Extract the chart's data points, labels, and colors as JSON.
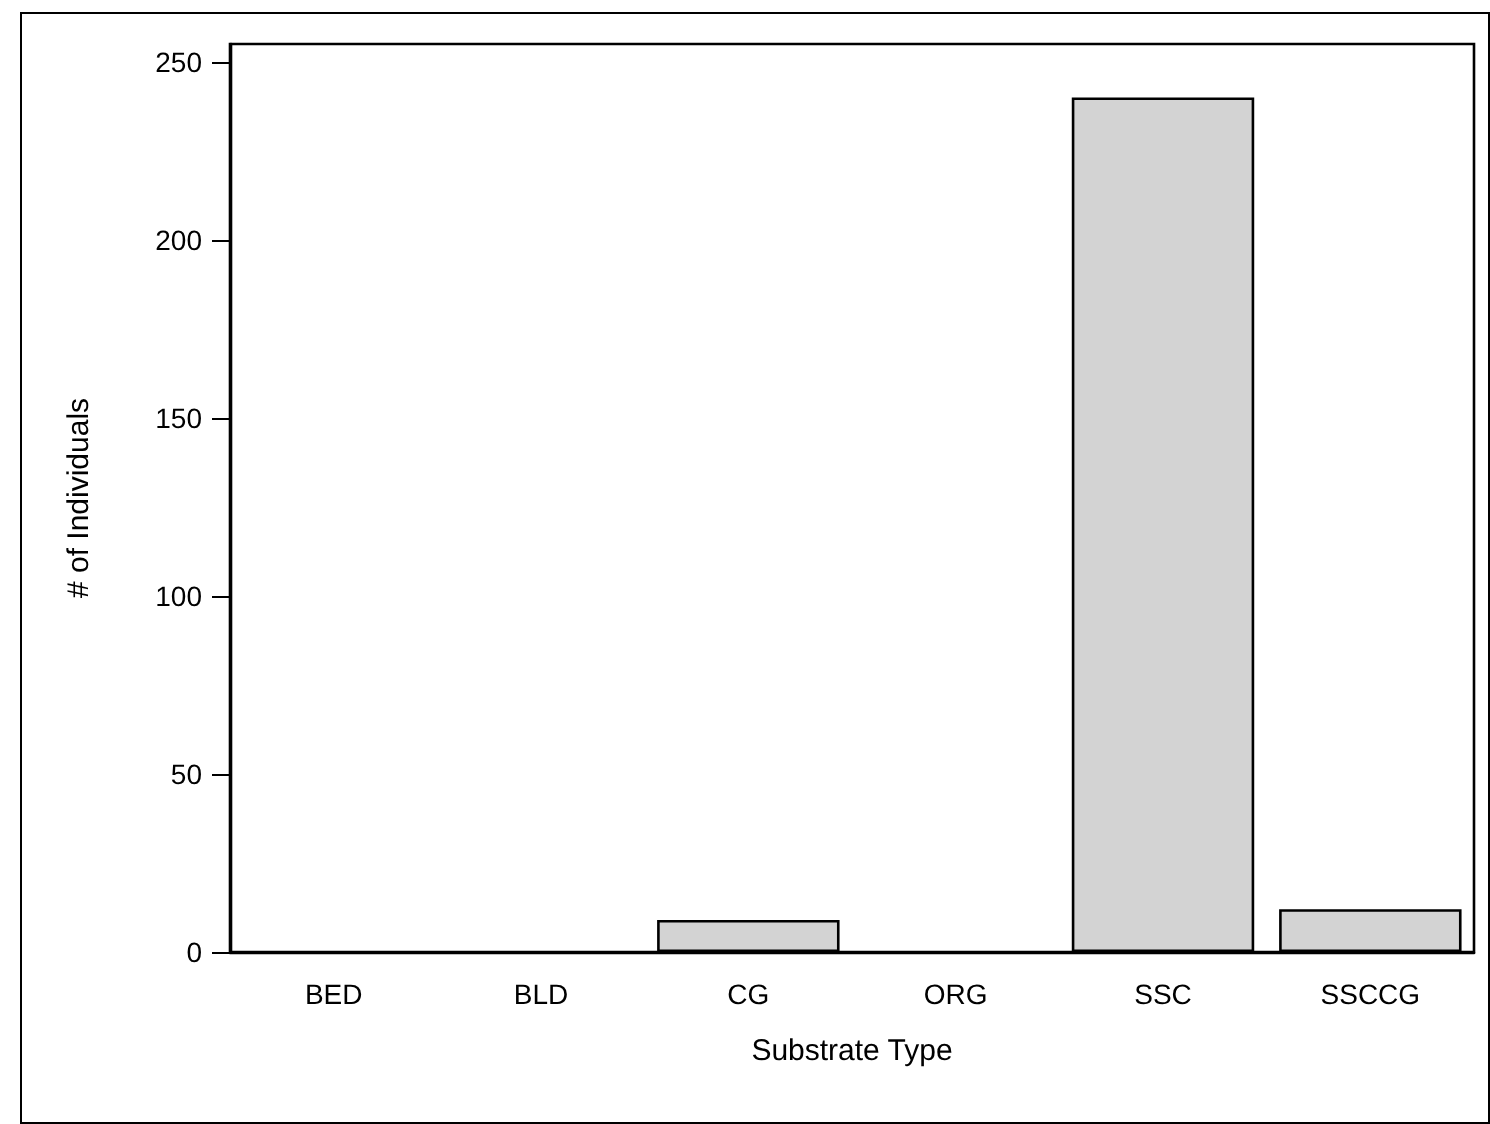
{
  "chart_data": {
    "type": "bar",
    "xlabel": "Substrate Type",
    "ylabel": "# of Individuals",
    "categories": [
      "BED",
      "BLD",
      "CG",
      "ORG",
      "SSC",
      "SSCCG"
    ],
    "values": [
      0,
      0,
      9,
      0,
      240,
      12
    ],
    "color": "#d3d3d3",
    "ylim": [
      0,
      255
    ],
    "yticks": [
      0,
      50,
      100,
      150,
      200,
      250
    ],
    "grid": false
  }
}
